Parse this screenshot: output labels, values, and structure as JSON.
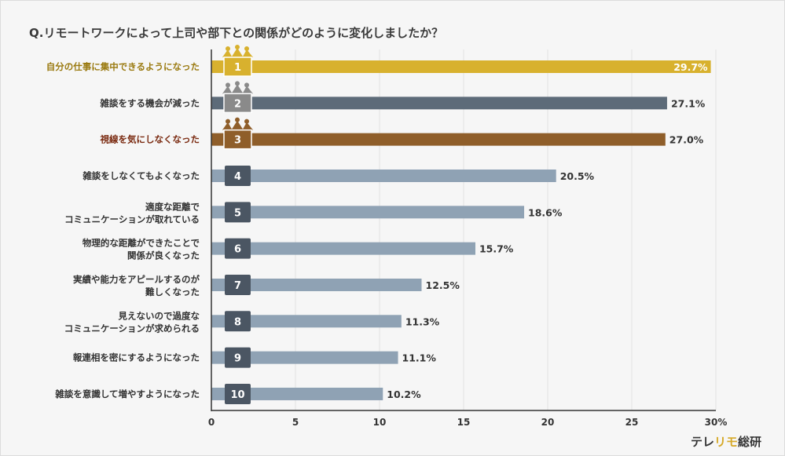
{
  "question": "Q.リモートワークによって上司や部下との関係がどのように変化しましたか？",
  "brand": {
    "part1": "テレ",
    "part2": "リモ",
    "part3": "総研"
  },
  "colors": {
    "gold": "#d8b12e",
    "silver": "#5d6b79",
    "bronze": "#8f5e2a",
    "rest": "#8fa2b4",
    "badge": "#4b5663",
    "grid": "#e1e1e1",
    "axis": "#333333",
    "label": "#333333",
    "goldLabel": "#9a7a10",
    "bronzeLabel": "#7a2a10",
    "crownGold": "#d8b12e",
    "crownSilver": "#8a8a8a",
    "crownBronze": "#8f5e2a"
  },
  "chart_data": {
    "type": "bar",
    "orientation": "horizontal",
    "title": "Q.リモートワークによって上司や部下との関係がどのように変化しましたか？",
    "categories": [
      "自分の仕事に集中できるようになった",
      "雑談をする機会が減った",
      "視線を気にしなくなった",
      "雑談をしなくてもよくなった",
      "適度な距離で\nコミュニケーションが取れている",
      "物理的な距離ができたことで\n関係が良くなった",
      "実績や能力をアピールするのが\n難しくなった",
      "見えないので過度な\nコミュニケーションが求められる",
      "報連相を密にするようになった",
      "雑談を意識して増やすようになった"
    ],
    "ranks": [
      "1",
      "2",
      "3",
      "4",
      "5",
      "6",
      "7",
      "8",
      "9",
      "10"
    ],
    "values": [
      29.7,
      27.1,
      27.0,
      20.5,
      18.6,
      15.7,
      12.5,
      11.3,
      11.1,
      10.2
    ],
    "value_labels": [
      "29.7%",
      "27.1%",
      "27.0%",
      "20.5%",
      "18.6%",
      "15.7%",
      "12.5%",
      "11.3%",
      "11.1%",
      "10.2%"
    ],
    "xlim": [
      0,
      30
    ],
    "xticks": [
      0,
      5,
      10,
      15,
      20,
      25,
      30
    ],
    "xtick_labels": [
      "0",
      "5",
      "10",
      "15",
      "20",
      "25",
      "30%"
    ],
    "xlabel": "",
    "ylabel": "",
    "grid": true,
    "legend": "none"
  }
}
